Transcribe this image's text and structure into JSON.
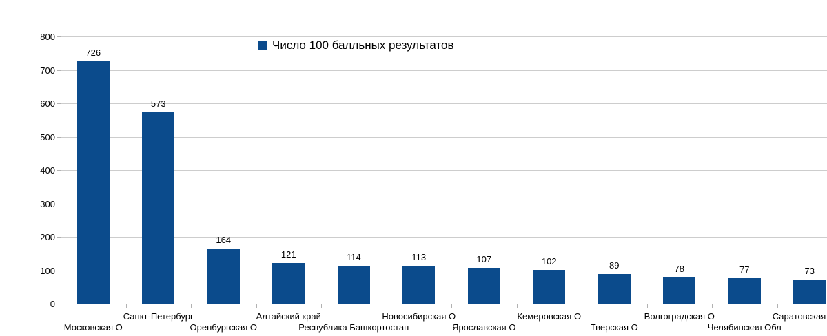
{
  "chart_data": {
    "type": "bar",
    "title": "",
    "legend": {
      "label": "Число 100 балльных результатов",
      "position": "top"
    },
    "categories": [
      "Московская О",
      "Санкт-Петербург",
      "Оренбургская О",
      "Алтайский край",
      "Республика Башкортостан",
      "Новосибирская О",
      "Ярославская О",
      "Кемеровская О",
      "Тверская О",
      "Волгоградская О",
      "Челябинская Обл",
      "Саратовская"
    ],
    "values": [
      726,
      573,
      164,
      121,
      114,
      113,
      107,
      102,
      89,
      78,
      77,
      73
    ],
    "data_labels": true,
    "ylim": [
      0,
      800
    ],
    "ytick_step": 100,
    "yticks": [
      0,
      100,
      200,
      300,
      400,
      500,
      600,
      700,
      800
    ],
    "grid": true,
    "x_label_layout": "staggered-two-rows",
    "bar_color": "#0B4B8C",
    "grid_color": "#cdcdcd",
    "axis_color": "#b2b2b2",
    "text_color": "#000000"
  }
}
